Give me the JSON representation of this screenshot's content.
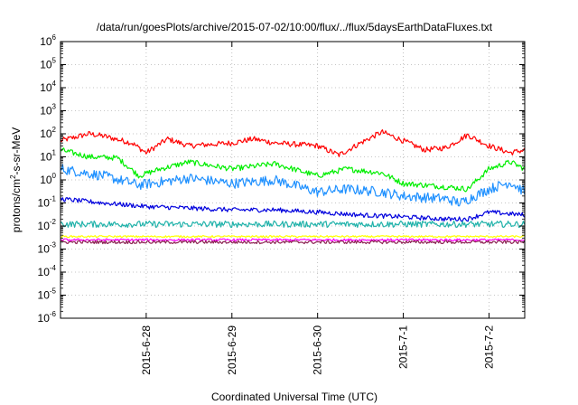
{
  "chart_data": {
    "type": "line",
    "title": "/data/run/goesPlots/archive/2015-07-02/10:00/flux/../flux/5daysEarthDataFluxes.txt",
    "xlabel": "Coordinated Universal Time (UTC)",
    "ylabel": {
      "base": "protons/cm",
      "sup": "2",
      "rest": "-s-sr-MeV"
    },
    "x_range": [
      "2015-06-27T00:00",
      "2015-07-02T10:00"
    ],
    "x_ticks": [
      "2015-6-28",
      "2015-6-29",
      "2015-6-30",
      "2015-7-1",
      "2015-7-2"
    ],
    "y_scale": "log",
    "y_range": [
      "1e-6",
      "1e6"
    ],
    "y_ticks": [
      {
        "base": "10",
        "exp": "6"
      },
      {
        "base": "10",
        "exp": "5"
      },
      {
        "base": "10",
        "exp": "4"
      },
      {
        "base": "10",
        "exp": "3"
      },
      {
        "base": "10",
        "exp": "2"
      },
      {
        "base": "10",
        "exp": "1"
      },
      {
        "base": "10",
        "exp": "0"
      },
      {
        "base": "10",
        "exp": "-1"
      },
      {
        "base": "10",
        "exp": "-2"
      },
      {
        "base": "10",
        "exp": "-3"
      },
      {
        "base": "10",
        "exp": "-4"
      },
      {
        "base": "10",
        "exp": "-5"
      },
      {
        "base": "10",
        "exp": "-6"
      }
    ],
    "grid": true,
    "series": [
      {
        "color": "#ff0000",
        "noise": 0.12,
        "x": [
          "2015-06-27T00:00",
          "2015-06-27T08:00",
          "2015-06-27T12:00",
          "2015-06-27T20:00",
          "2015-06-28T00:00",
          "2015-06-28T06:00",
          "2015-06-28T12:00",
          "2015-06-29T00:00",
          "2015-06-29T06:00",
          "2015-06-29T12:00",
          "2015-06-30T00:00",
          "2015-06-30T06:00",
          "2015-06-30T12:00",
          "2015-06-30T18:00",
          "2015-07-01T00:00",
          "2015-07-01T06:00",
          "2015-07-01T12:00",
          "2015-07-01T18:00",
          "2015-07-02T00:00",
          "2015-07-02T06:00",
          "2015-07-02T10:00"
        ],
        "y": [
          50,
          100,
          80,
          40,
          15,
          60,
          30,
          40,
          60,
          40,
          30,
          12,
          40,
          120,
          50,
          20,
          25,
          90,
          30,
          15,
          20
        ]
      },
      {
        "color": "#00ee00",
        "noise": 0.12,
        "x": [
          "2015-06-27T00:00",
          "2015-06-27T08:00",
          "2015-06-27T16:00",
          "2015-06-27T22:00",
          "2015-06-28T04:00",
          "2015-06-28T12:00",
          "2015-06-29T00:00",
          "2015-06-29T12:00",
          "2015-06-30T00:00",
          "2015-06-30T08:00",
          "2015-06-30T18:00",
          "2015-07-01T00:00",
          "2015-07-01T12:00",
          "2015-07-01T18:00",
          "2015-07-02T00:00",
          "2015-07-02T06:00",
          "2015-07-02T10:00"
        ],
        "y": [
          20,
          10,
          9,
          1.5,
          3,
          6,
          3,
          5,
          1.5,
          3,
          2,
          0.7,
          0.5,
          0.4,
          3,
          6,
          3
        ]
      },
      {
        "color": "#1e90ff",
        "noise": 0.22,
        "x": [
          "2015-06-27T00:00",
          "2015-06-27T12:00",
          "2015-06-27T22:00",
          "2015-06-28T04:00",
          "2015-06-28T12:00",
          "2015-06-29T00:00",
          "2015-06-29T12:00",
          "2015-06-30T00:00",
          "2015-06-30T08:00",
          "2015-06-30T18:00",
          "2015-07-01T00:00",
          "2015-07-01T12:00",
          "2015-07-01T16:00",
          "2015-07-02T00:00",
          "2015-07-02T06:00",
          "2015-07-02T10:00"
        ],
        "y": [
          3,
          1.5,
          0.6,
          0.8,
          1.2,
          0.7,
          1,
          0.3,
          0.4,
          0.3,
          0.2,
          0.15,
          0.1,
          0.4,
          0.8,
          0.3
        ]
      },
      {
        "color": "#0000dd",
        "noise": 0.1,
        "x": [
          "2015-06-27T00:00",
          "2015-06-27T12:00",
          "2015-06-28T00:00",
          "2015-06-28T12:00",
          "2015-06-29T00:00",
          "2015-06-29T12:00",
          "2015-06-30T00:00",
          "2015-06-30T12:00",
          "2015-07-01T00:00",
          "2015-07-01T12:00",
          "2015-07-01T18:00",
          "2015-07-02T00:00",
          "2015-07-02T10:00"
        ],
        "y": [
          0.15,
          0.1,
          0.07,
          0.06,
          0.05,
          0.05,
          0.04,
          0.03,
          0.025,
          0.02,
          0.02,
          0.04,
          0.03
        ]
      },
      {
        "color": "#20b2aa",
        "noise": 0.14,
        "x": [
          "2015-06-27T00:00",
          "2015-07-02T10:00"
        ],
        "y": [
          0.012,
          0.012
        ]
      },
      {
        "color": "#ffff00",
        "noise": 0.04,
        "x": [
          "2015-06-27T00:00",
          "2015-07-02T10:00"
        ],
        "y": [
          0.0035,
          0.0035
        ]
      },
      {
        "color": "#ff00ff",
        "noise": 0.05,
        "x": [
          "2015-06-27T00:00",
          "2015-07-02T10:00"
        ],
        "y": [
          0.0025,
          0.0025
        ]
      },
      {
        "color": "#8b2252",
        "noise": 0.07,
        "x": [
          "2015-06-27T00:00",
          "2015-07-02T10:00"
        ],
        "y": [
          0.002,
          0.002
        ]
      }
    ]
  }
}
